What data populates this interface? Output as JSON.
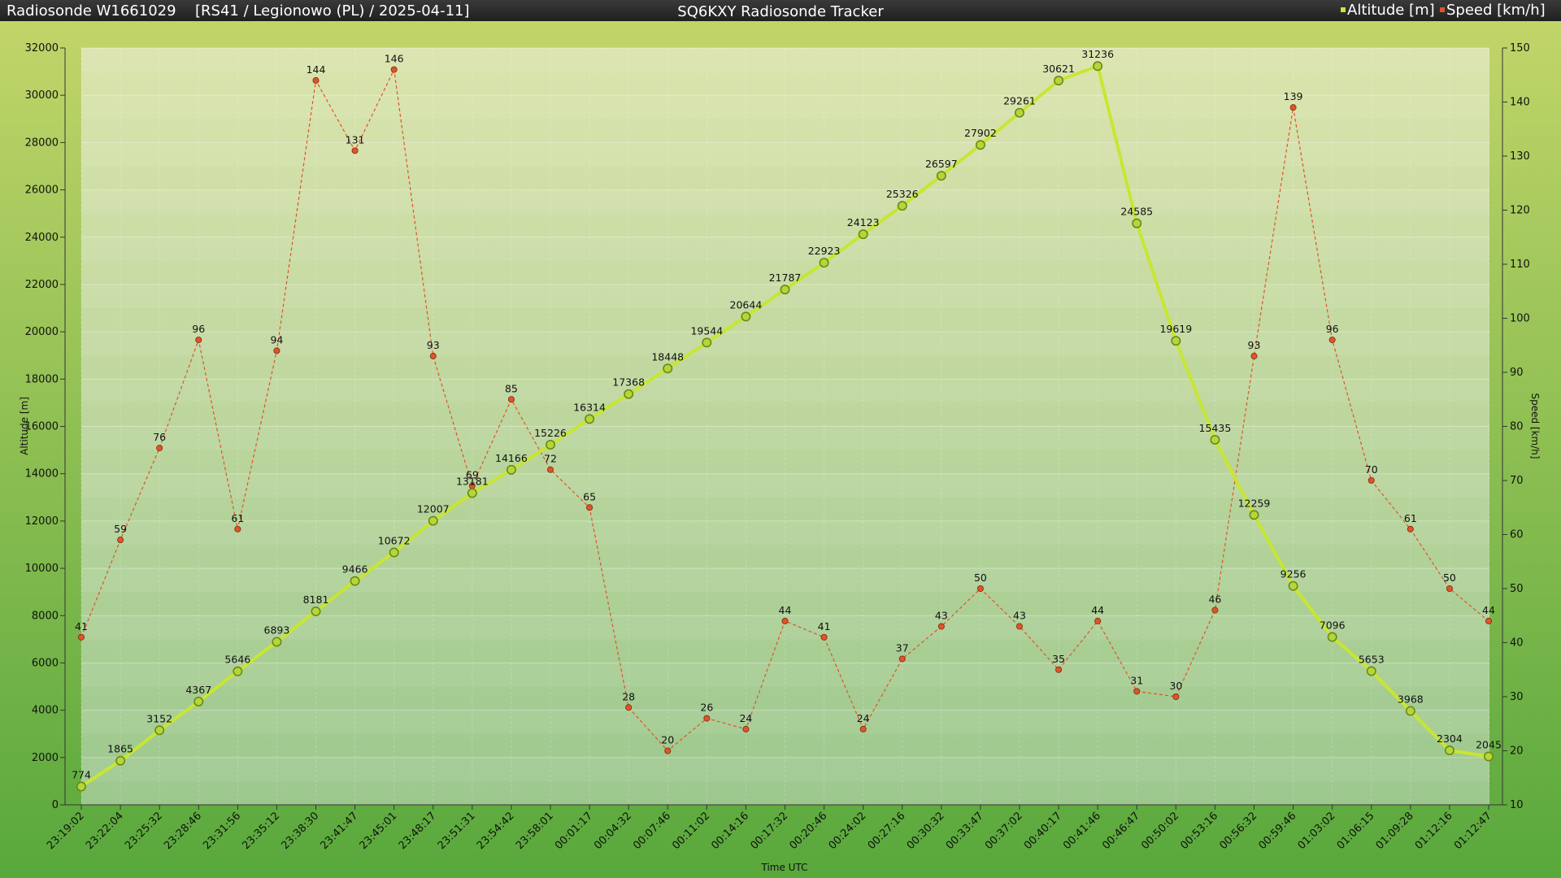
{
  "header": {
    "left_title": "Radiosonde W1661029",
    "info": "[RS41 / Legionowo (PL) / 2025-04-11]",
    "center_title": "SQ6KXY Radiosonde Tracker"
  },
  "colors": {
    "altitude": "#c8e632",
    "speed": "#e0542a",
    "header_bg": "#2a2a2a"
  },
  "chart_data": {
    "type": "line",
    "xlabel": "Time UTC",
    "ylabel": "Altitude [m]",
    "y2label": "Speed [km/h]",
    "ylim": [
      0,
      32000
    ],
    "y2lim": [
      10,
      150
    ],
    "yticks": [
      0,
      2000,
      4000,
      6000,
      8000,
      10000,
      12000,
      14000,
      16000,
      18000,
      20000,
      22000,
      24000,
      26000,
      28000,
      30000,
      32000
    ],
    "y2ticks": [
      10,
      20,
      30,
      40,
      50,
      60,
      70,
      80,
      90,
      100,
      110,
      120,
      130,
      140,
      150
    ],
    "legend_position": "top-right",
    "grid": true,
    "x": [
      "23:19:02",
      "23:22:04",
      "23:25:32",
      "23:28:46",
      "23:31:56",
      "23:35:12",
      "23:38:30",
      "23:41:47",
      "23:45:01",
      "23:48:17",
      "23:51:31",
      "23:54:42",
      "23:58:01",
      "00:01:17",
      "00:04:32",
      "00:07:46",
      "00:11:02",
      "00:14:16",
      "00:17:32",
      "00:20:46",
      "00:24:02",
      "00:27:16",
      "00:30:32",
      "00:33:47",
      "00:37:02",
      "00:40:17",
      "00:41:46",
      "00:46:47",
      "00:50:02",
      "00:53:16",
      "00:56:32",
      "00:59:46",
      "01:03:02",
      "01:06:15",
      "01:09:28",
      "01:12:16",
      "01:12:47"
    ],
    "series": [
      {
        "name": "Altitude [m]",
        "axis": "left",
        "values": [
          774,
          1865,
          3152,
          4367,
          5646,
          6893,
          8181,
          9466,
          10672,
          12007,
          13181,
          14166,
          15226,
          16314,
          17368,
          18448,
          19544,
          20644,
          21787,
          22923,
          24123,
          25326,
          26597,
          27902,
          29261,
          30621,
          31236,
          24585,
          19619,
          15435,
          12259,
          9256,
          7096,
          5653,
          3968,
          2304,
          2045
        ]
      },
      {
        "name": "Speed [km/h]",
        "axis": "right",
        "values": [
          41,
          59,
          76,
          96,
          61,
          94,
          144,
          131,
          146,
          93,
          69,
          85,
          72,
          65,
          28,
          20,
          26,
          24,
          44,
          41,
          24,
          37,
          43,
          50,
          43,
          35,
          44,
          31,
          30,
          46,
          93,
          139,
          96,
          70,
          61,
          50,
          44
        ]
      }
    ]
  }
}
